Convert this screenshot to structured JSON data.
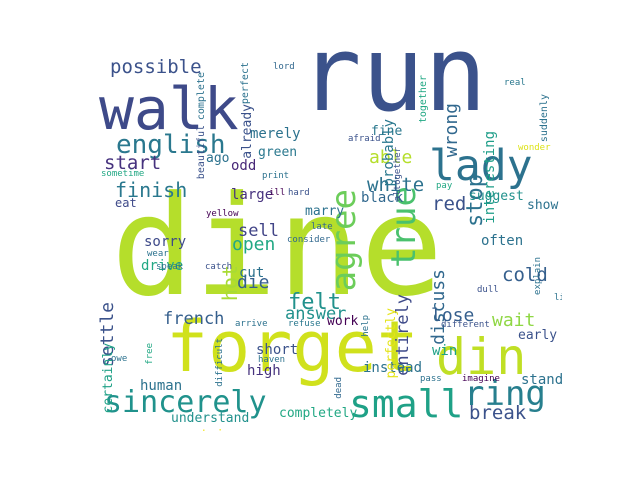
{
  "words": [
    {
      "text": "dine",
      "color": "#b5de2b"
    },
    {
      "text": "run",
      "color": "#3b528b"
    },
    {
      "text": "forget",
      "color": "#d0e11c"
    },
    {
      "text": "walk",
      "color": "#3e4a89"
    },
    {
      "text": "din",
      "color": "#c0df25"
    },
    {
      "text": "small",
      "color": "#1fa187"
    },
    {
      "text": "sincerely",
      "color": "#20928c"
    },
    {
      "text": "lady",
      "color": "#2c728e"
    },
    {
      "text": "true",
      "color": "#4ac16d"
    },
    {
      "text": "agree",
      "color": "#6ccd5a"
    },
    {
      "text": "ring",
      "color": "#277f8e"
    },
    {
      "text": "english",
      "color": "#2a788e"
    },
    {
      "text": "felt",
      "color": "#21918c"
    },
    {
      "text": "possible",
      "color": "#3b528b"
    },
    {
      "text": "wrong",
      "color": "#31688e"
    },
    {
      "text": "stop",
      "color": "#2c728e"
    },
    {
      "text": "white",
      "color": "#2c728e"
    },
    {
      "text": "finish",
      "color": "#2a788e"
    },
    {
      "text": "hot",
      "color": "#a8db34"
    },
    {
      "text": "open",
      "color": "#22a884"
    },
    {
      "text": "die",
      "color": "#355f8d"
    },
    {
      "text": "settle",
      "color": "#3b528b"
    },
    {
      "text": "french",
      "color": "#355f8d"
    },
    {
      "text": "answer",
      "color": "#21918c"
    },
    {
      "text": "start",
      "color": "#46327e"
    },
    {
      "text": "able",
      "color": "#b5de2b"
    },
    {
      "text": "red",
      "color": "#3b528b"
    },
    {
      "text": "discuss",
      "color": "#31688e"
    },
    {
      "text": "entirely",
      "color": "#3e4a89"
    },
    {
      "text": "sell",
      "color": "#414487"
    },
    {
      "text": "cold",
      "color": "#355f8d"
    },
    {
      "text": "lose",
      "color": "#355f8d"
    },
    {
      "text": "wait",
      "color": "#8fd744"
    },
    {
      "text": "break",
      "color": "#3b528b"
    },
    {
      "text": "already",
      "color": "#3b528b"
    },
    {
      "text": "probably",
      "color": "#2a788e"
    },
    {
      "text": "merely",
      "color": "#2c728e"
    },
    {
      "text": "fine",
      "color": "#2a788e"
    },
    {
      "text": "interesting",
      "color": "#1f9e89"
    },
    {
      "text": "instead",
      "color": "#2c728e"
    },
    {
      "text": "often",
      "color": "#2c728e"
    },
    {
      "text": "large",
      "color": "#46327e"
    },
    {
      "text": "green",
      "color": "#2a788e"
    },
    {
      "text": "odd",
      "color": "#482878"
    },
    {
      "text": "ago",
      "color": "#2c728e"
    },
    {
      "text": "black",
      "color": "#31688e"
    },
    {
      "text": "show",
      "color": "#2c728e"
    },
    {
      "text": "suggest",
      "color": "#21918c"
    },
    {
      "text": "sorry",
      "color": "#3e4a89"
    },
    {
      "text": "drive",
      "color": "#22a884"
    },
    {
      "text": "cut",
      "color": "#2c728e"
    },
    {
      "text": "high",
      "color": "#46327e"
    },
    {
      "text": "short",
      "color": "#3b528b"
    },
    {
      "text": "human",
      "color": "#2c728e"
    },
    {
      "text": "understand",
      "color": "#21918c"
    },
    {
      "text": "completely",
      "color": "#22a884"
    },
    {
      "text": "stand",
      "color": "#2c728e"
    },
    {
      "text": "early",
      "color": "#3b528b"
    },
    {
      "text": "win",
      "color": "#1fa187"
    },
    {
      "text": "work",
      "color": "#440154"
    },
    {
      "text": "certainly",
      "color": "#1fa187"
    },
    {
      "text": "certain",
      "color": "#f1e51d"
    },
    {
      "text": "eat",
      "color": "#3e4a89"
    },
    {
      "text": "marry",
      "color": "#2c728e"
    },
    {
      "text": "perfectly",
      "color": "#e5e419"
    },
    {
      "text": "complete",
      "color": "#2c728e"
    },
    {
      "text": "perfect",
      "color": "#2c728e"
    },
    {
      "text": "beautiful",
      "color": "#3b528b"
    },
    {
      "text": "together",
      "color": "#22a884"
    },
    {
      "text": "suddenly",
      "color": "#2c728e"
    },
    {
      "text": "lord",
      "color": "#31688e"
    },
    {
      "text": "real",
      "color": "#2a788e"
    },
    {
      "text": "afraid",
      "color": "#3b528b"
    },
    {
      "text": "altogether",
      "color": "#3b528b"
    },
    {
      "text": "wonder",
      "color": "#dde318"
    },
    {
      "text": "sometime",
      "color": "#22a884"
    },
    {
      "text": "print",
      "color": "#2c728e"
    },
    {
      "text": "ill",
      "color": "#440154"
    },
    {
      "text": "hard",
      "color": "#3b528b"
    },
    {
      "text": "pay",
      "color": "#22a884"
    },
    {
      "text": "yellow",
      "color": "#440154"
    },
    {
      "text": "late",
      "color": "#31688e"
    },
    {
      "text": "wear",
      "color": "#2c728e"
    },
    {
      "text": "consider",
      "color": "#31688e"
    },
    {
      "text": "speak",
      "color": "#2c728e"
    },
    {
      "text": "catch",
      "color": "#3b528b"
    },
    {
      "text": "explain",
      "color": "#2c728e"
    },
    {
      "text": "dull",
      "color": "#3b528b"
    },
    {
      "text": "lie",
      "color": "#2c728e"
    },
    {
      "text": "arrive",
      "color": "#2c728e"
    },
    {
      "text": "refuse",
      "color": "#2a788e"
    },
    {
      "text": "help",
      "color": "#2c728e"
    },
    {
      "text": "different",
      "color": "#3b528b"
    },
    {
      "text": "free",
      "color": "#22a884"
    },
    {
      "text": "owe",
      "color": "#2c728e"
    },
    {
      "text": "difficult",
      "color": "#2c728e"
    },
    {
      "text": "haven",
      "color": "#2c728e"
    },
    {
      "text": "dead",
      "color": "#31688e"
    },
    {
      "text": "pass",
      "color": "#2c728e"
    },
    {
      "text": "imagine",
      "color": "#440154"
    }
  ]
}
